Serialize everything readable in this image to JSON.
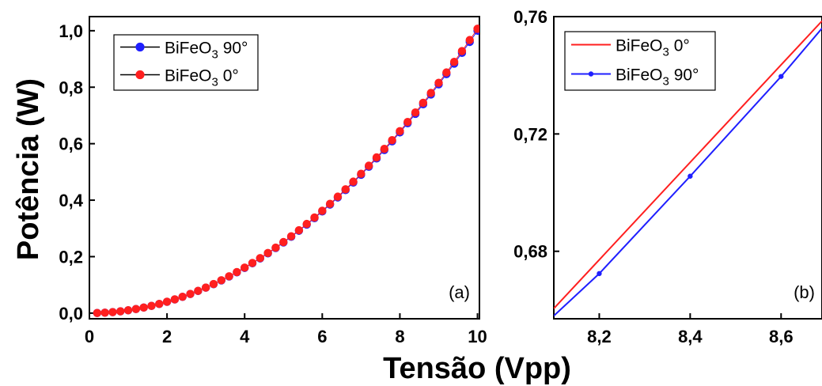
{
  "figure": {
    "ylabel": "Potência (W)",
    "xlabel": "Tensão (Vpp)"
  },
  "colors": {
    "blue": "#1f1fff",
    "red": "#ff1f1f",
    "axis": "#000000"
  },
  "chart_data": [
    {
      "panel_label": "(a)",
      "type": "scatter",
      "xlim": [
        0,
        10.05
      ],
      "ylim": [
        -0.02,
        1.05
      ],
      "xticks": [
        0,
        2,
        4,
        6,
        8,
        10
      ],
      "xtick_labels": [
        "0",
        "2",
        "4",
        "6",
        "8",
        "10"
      ],
      "yticks": [
        0.0,
        0.2,
        0.4,
        0.6,
        0.8,
        1.0
      ],
      "ytick_labels": [
        "0,0",
        "0,2",
        "0,4",
        "0,6",
        "0,8",
        "1,0"
      ],
      "legend": {
        "position": "top-left",
        "entries": [
          {
            "base": "BiFeO",
            "sub": "3",
            "suffix": " 90°"
          },
          {
            "base": "BiFeO",
            "sub": "3",
            "suffix": " 0°"
          }
        ]
      },
      "series": [
        {
          "name": "BiFeO3 90°",
          "color": "#1f1fff",
          "x": [
            0.2,
            0.4,
            0.6,
            0.8,
            1.0,
            1.2,
            1.4,
            1.6,
            1.8,
            2.0,
            2.2,
            2.4,
            2.6,
            2.8,
            3.0,
            3.2,
            3.4,
            3.6,
            3.8,
            4.0,
            4.2,
            4.4,
            4.6,
            4.8,
            5.0,
            5.2,
            5.4,
            5.6,
            5.8,
            6.0,
            6.2,
            6.4,
            6.6,
            6.8,
            7.0,
            7.2,
            7.4,
            7.6,
            7.8,
            8.0,
            8.2,
            8.4,
            8.6,
            8.8,
            9.0,
            9.2,
            9.4,
            9.6,
            9.8,
            10.0
          ],
          "y": [
            0.0004,
            0.0016,
            0.0036,
            0.0064,
            0.01,
            0.0144,
            0.0196,
            0.0256,
            0.0324,
            0.04,
            0.0484,
            0.0576,
            0.0676,
            0.0784,
            0.09,
            0.1024,
            0.1156,
            0.1296,
            0.1444,
            0.16,
            0.1764,
            0.1936,
            0.2116,
            0.2304,
            0.25,
            0.2704,
            0.2916,
            0.3136,
            0.3364,
            0.36,
            0.3844,
            0.4096,
            0.4356,
            0.4624,
            0.49,
            0.5184,
            0.5476,
            0.5776,
            0.6084,
            0.64,
            0.6724,
            0.7056,
            0.7396,
            0.7744,
            0.81,
            0.8464,
            0.8836,
            0.9216,
            0.9604,
            1.0
          ]
        },
        {
          "name": "BiFeO3 0°",
          "color": "#ff1f1f",
          "x": [
            0.2,
            0.4,
            0.6,
            0.8,
            1.0,
            1.2,
            1.4,
            1.6,
            1.8,
            2.0,
            2.2,
            2.4,
            2.6,
            2.8,
            3.0,
            3.2,
            3.4,
            3.6,
            3.8,
            4.0,
            4.2,
            4.4,
            4.6,
            4.8,
            5.0,
            5.2,
            5.4,
            5.6,
            5.8,
            6.0,
            6.2,
            6.4,
            6.6,
            6.8,
            7.0,
            7.2,
            7.4,
            7.6,
            7.8,
            8.0,
            8.2,
            8.4,
            8.6,
            8.8,
            9.0,
            9.2,
            9.4,
            9.6,
            9.8,
            10.0
          ],
          "y": [
            0.0004,
            0.0016,
            0.0036,
            0.0064,
            0.0101,
            0.0145,
            0.0197,
            0.0258,
            0.0326,
            0.0403,
            0.0487,
            0.058,
            0.068,
            0.0789,
            0.0906,
            0.1031,
            0.1164,
            0.1305,
            0.1454,
            0.1611,
            0.1776,
            0.1949,
            0.213,
            0.232,
            0.2517,
            0.2722,
            0.2936,
            0.3158,
            0.3387,
            0.3625,
            0.3871,
            0.4124,
            0.4386,
            0.4656,
            0.4934,
            0.522,
            0.5514,
            0.5816,
            0.6126,
            0.6444,
            0.677,
            0.7105,
            0.7447,
            0.7797,
            0.8156,
            0.8522,
            0.8897,
            0.928,
            0.967,
            1.0069
          ]
        }
      ]
    },
    {
      "panel_label": "(b)",
      "type": "line",
      "xlim": [
        8.1,
        8.69
      ],
      "ylim": [
        0.657,
        0.76
      ],
      "xticks": [
        8.2,
        8.4,
        8.6
      ],
      "xtick_labels": [
        "8,2",
        "8,4",
        "8,6"
      ],
      "yticks": [
        0.68,
        0.72,
        0.76
      ],
      "ytick_labels": [
        "0,68",
        "0,72",
        "0,76"
      ],
      "legend": {
        "position": "top-left",
        "entries": [
          {
            "base": "BiFeO",
            "sub": "3",
            "suffix": " 0°"
          },
          {
            "base": "BiFeO",
            "sub": "3",
            "suffix": " 90°"
          }
        ]
      },
      "series": [
        {
          "name": "BiFeO3 0°",
          "color": "#ff1f1f",
          "x": [
            8.1,
            8.69
          ],
          "y": [
            0.6605,
            0.7585
          ],
          "markers": false
        },
        {
          "name": "BiFeO3 90°",
          "color": "#1f1fff",
          "x": [
            8.1,
            8.2,
            8.4,
            8.6,
            8.69
          ],
          "y": [
            0.658,
            0.6724,
            0.7056,
            0.7396,
            0.756
          ],
          "marker_x": [
            8.2,
            8.4,
            8.6
          ],
          "marker_y": [
            0.6724,
            0.7056,
            0.7396
          ],
          "markers": true
        }
      ]
    }
  ]
}
